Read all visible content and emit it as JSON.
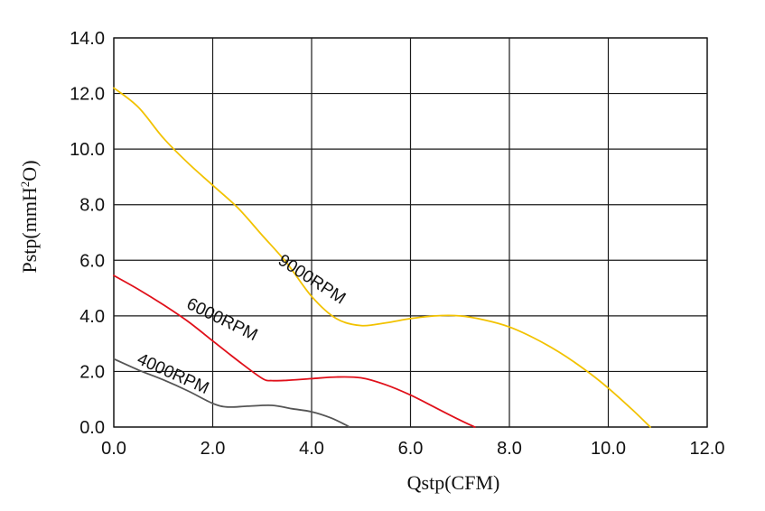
{
  "chart_data": {
    "type": "line",
    "title": "",
    "xlabel": "Qstp(CFM)",
    "ylabel_parts": [
      "Pstp(mmH",
      "2",
      "O)"
    ],
    "xlim": [
      0,
      12
    ],
    "ylim": [
      0,
      14
    ],
    "x_ticks": [
      "0.0",
      "2.0",
      "4.0",
      "6.0",
      "8.0",
      "10.0",
      "12.0"
    ],
    "y_ticks": [
      "0.0",
      "2.0",
      "4.0",
      "6.0",
      "8.0",
      "10.0",
      "12.0",
      "14.0"
    ],
    "grid": true,
    "legend": "none",
    "series": [
      {
        "name": "9000RPM",
        "color": "#f2c200",
        "points": [
          [
            0,
            12.2
          ],
          [
            0.5,
            11.5
          ],
          [
            1,
            10.4
          ],
          [
            1.5,
            9.5
          ],
          [
            2,
            8.7
          ],
          [
            2.5,
            7.9
          ],
          [
            3,
            6.9
          ],
          [
            3.5,
            5.9
          ],
          [
            4,
            4.7
          ],
          [
            4.5,
            3.9
          ],
          [
            5,
            3.65
          ],
          [
            5.5,
            3.75
          ],
          [
            6,
            3.9
          ],
          [
            6.5,
            4.0
          ],
          [
            7,
            4.0
          ],
          [
            7.5,
            3.85
          ],
          [
            8,
            3.6
          ],
          [
            8.5,
            3.2
          ],
          [
            9,
            2.7
          ],
          [
            9.5,
            2.1
          ],
          [
            10,
            1.4
          ],
          [
            10.5,
            0.6
          ],
          [
            10.85,
            0
          ]
        ],
        "label_at": [
          3.3,
          5.9
        ],
        "label_angle": 33
      },
      {
        "name": "6000RPM",
        "color": "#e0101a",
        "points": [
          [
            0,
            5.45
          ],
          [
            0.5,
            4.95
          ],
          [
            1,
            4.4
          ],
          [
            1.5,
            3.8
          ],
          [
            2,
            3.1
          ],
          [
            2.5,
            2.4
          ],
          [
            3,
            1.75
          ],
          [
            3.2,
            1.67
          ],
          [
            3.5,
            1.68
          ],
          [
            4,
            1.74
          ],
          [
            4.5,
            1.8
          ],
          [
            5,
            1.77
          ],
          [
            5.5,
            1.52
          ],
          [
            6,
            1.15
          ],
          [
            6.5,
            0.7
          ],
          [
            7,
            0.25
          ],
          [
            7.3,
            0
          ]
        ],
        "label_at": [
          1.45,
          4.3
        ],
        "label_angle": 26
      },
      {
        "name": "4000RPM",
        "color": "#555555",
        "points": [
          [
            0,
            2.45
          ],
          [
            0.5,
            2.05
          ],
          [
            1,
            1.7
          ],
          [
            1.5,
            1.3
          ],
          [
            2,
            0.85
          ],
          [
            2.3,
            0.72
          ],
          [
            2.7,
            0.75
          ],
          [
            3.2,
            0.78
          ],
          [
            3.6,
            0.66
          ],
          [
            4,
            0.55
          ],
          [
            4.4,
            0.32
          ],
          [
            4.75,
            0.02
          ]
        ],
        "label_at": [
          0.45,
          2.3
        ],
        "label_angle": 24
      }
    ]
  }
}
